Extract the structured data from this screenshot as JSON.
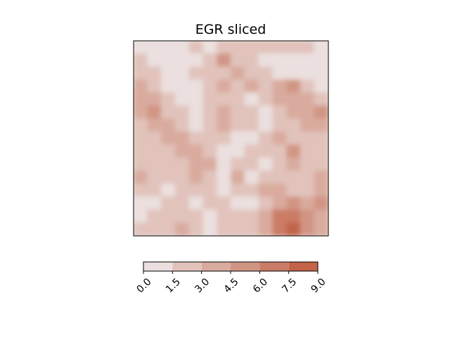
{
  "chart_data": {
    "type": "heatmap",
    "subtype": "filled-contour",
    "title": "EGR sliced",
    "xlabel": "",
    "ylabel": "",
    "axes_ticks_visible": false,
    "grid": false,
    "colorbar": {
      "orientation": "horizontal",
      "placement": "bottom",
      "levels": [
        0.0,
        1.5,
        3.0,
        4.5,
        6.0,
        7.5,
        9.0
      ],
      "tick_labels": [
        "0.0",
        "1.5",
        "3.0",
        "4.5",
        "6.0",
        "7.5",
        "9.0"
      ],
      "tick_rotation_deg": 45,
      "colors": [
        "#ebe0df",
        "#e1c3bc",
        "#d9ab9e",
        "#d19584",
        "#ca7c66",
        "#c2634a"
      ]
    },
    "field_grid_note_free": true,
    "field": [
      [
        0,
        0,
        0,
        0,
        1,
        0,
        1,
        1,
        1,
        1,
        1,
        1,
        1,
        0
      ],
      [
        1,
        0,
        0,
        0,
        0,
        1,
        3,
        1,
        1,
        0,
        0,
        0,
        0,
        0
      ],
      [
        1,
        1,
        0,
        0,
        1,
        1,
        1,
        2,
        1,
        1,
        0,
        0,
        0,
        0
      ],
      [
        2,
        1,
        0,
        0,
        0,
        1,
        2,
        1,
        2,
        1,
        2,
        3,
        1,
        0
      ],
      [
        2,
        2,
        1,
        0,
        0,
        1,
        1,
        1,
        0,
        1,
        2,
        2,
        2,
        1
      ],
      [
        2,
        3,
        1,
        1,
        0,
        1,
        2,
        1,
        1,
        0,
        1,
        2,
        2,
        3
      ],
      [
        1,
        2,
        2,
        1,
        0,
        1,
        2,
        1,
        1,
        0,
        1,
        1,
        2,
        2
      ],
      [
        1,
        1,
        2,
        2,
        1,
        1,
        1,
        0,
        0,
        1,
        2,
        1,
        1,
        1
      ],
      [
        1,
        1,
        1,
        2,
        2,
        1,
        0,
        0,
        1,
        1,
        1,
        3,
        1,
        1
      ],
      [
        1,
        1,
        1,
        1,
        2,
        2,
        0,
        1,
        1,
        0,
        1,
        2,
        1,
        1
      ],
      [
        2,
        1,
        1,
        1,
        2,
        1,
        0,
        2,
        0,
        1,
        1,
        1,
        1,
        2
      ],
      [
        1,
        1,
        0,
        1,
        1,
        1,
        0,
        1,
        1,
        2,
        2,
        1,
        1,
        2
      ],
      [
        0,
        0,
        1,
        1,
        0,
        1,
        1,
        0,
        0,
        1,
        2,
        3,
        2,
        3
      ],
      [
        0,
        1,
        1,
        1,
        1,
        0,
        1,
        1,
        1,
        2,
        4,
        4,
        3,
        2
      ],
      [
        1,
        1,
        1,
        2,
        1,
        0,
        1,
        1,
        1,
        2,
        4,
        5,
        3,
        2
      ]
    ]
  }
}
